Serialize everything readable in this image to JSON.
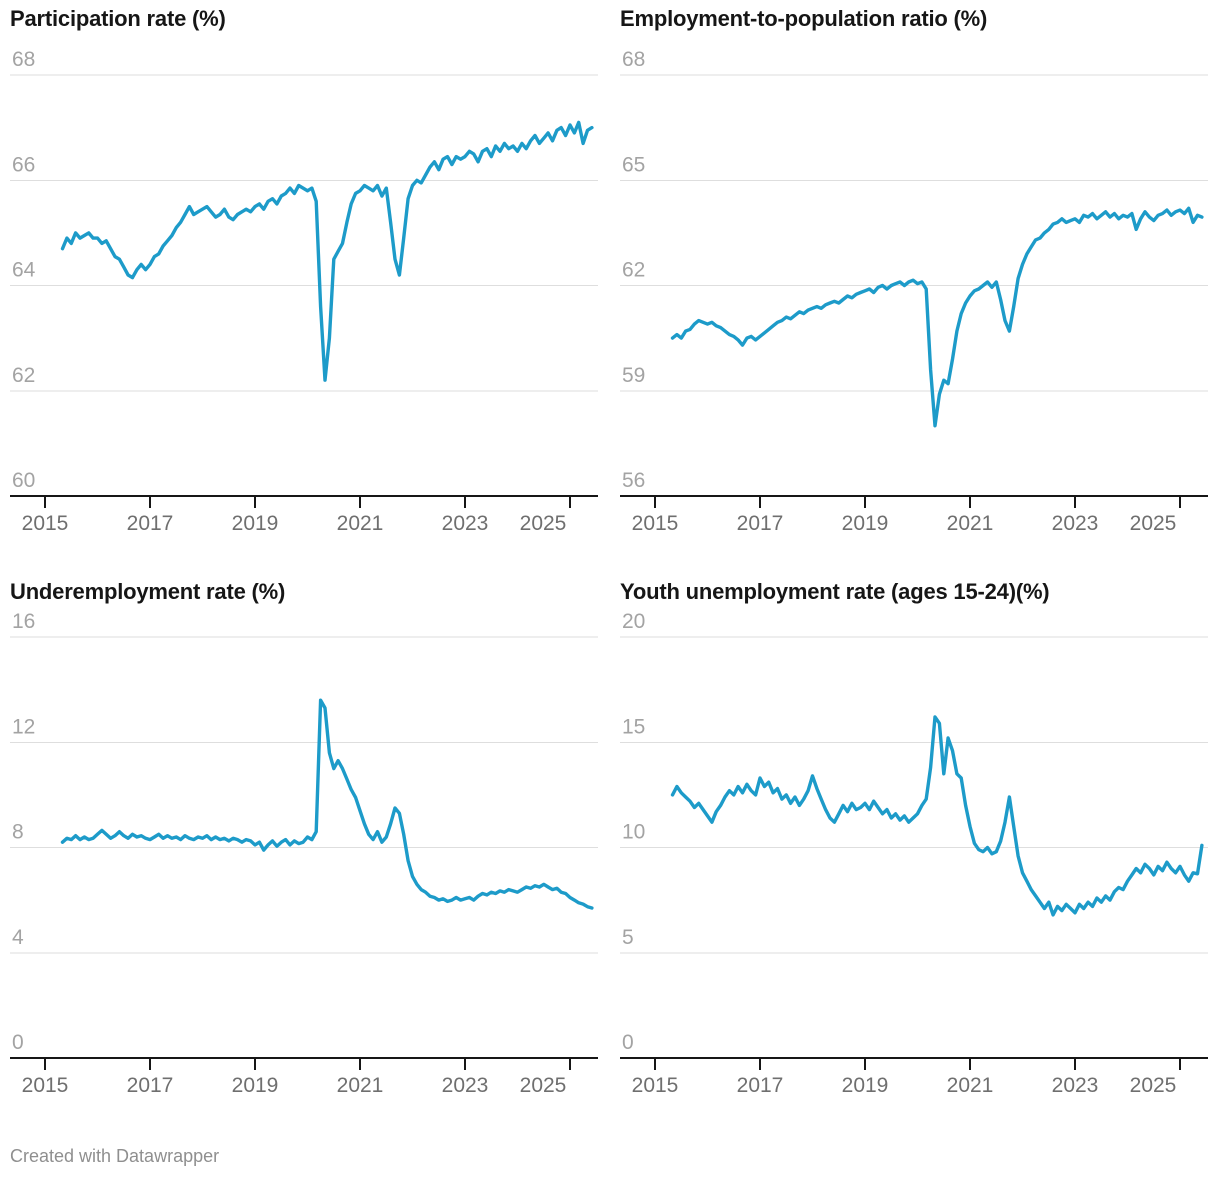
{
  "footer": {
    "credit": "Created with Datawrapper"
  },
  "colors": {
    "line": "#1d9bc9",
    "grid": "#dedede",
    "axis": "#161616",
    "y_label": "#a3a3a3",
    "x_label": "#6f6f6f",
    "title": "#161616",
    "credit": "#8f8f8f"
  },
  "chart_data": [
    {
      "type": "line",
      "title": "Participation rate (%)",
      "position": "top-left",
      "x": {
        "start": "2015-05",
        "frequency": "monthly",
        "tick_years": [
          2015,
          2017,
          2019,
          2021,
          2023,
          2025
        ]
      },
      "ylim": [
        60,
        68
      ],
      "y_ticks": [
        68,
        66,
        64,
        62,
        60
      ],
      "grid": true,
      "legend": "none",
      "values": [
        64.7,
        64.9,
        64.8,
        65.0,
        64.9,
        64.95,
        65.0,
        64.9,
        64.9,
        64.8,
        64.85,
        64.7,
        64.55,
        64.5,
        64.35,
        64.2,
        64.15,
        64.3,
        64.4,
        64.3,
        64.4,
        64.55,
        64.6,
        64.75,
        64.85,
        64.95,
        65.1,
        65.2,
        65.35,
        65.5,
        65.35,
        65.4,
        65.45,
        65.5,
        65.4,
        65.3,
        65.35,
        65.45,
        65.3,
        65.25,
        65.35,
        65.4,
        65.45,
        65.4,
        65.5,
        65.55,
        65.45,
        65.6,
        65.65,
        65.55,
        65.7,
        65.75,
        65.85,
        65.75,
        65.9,
        65.85,
        65.8,
        65.85,
        65.6,
        63.6,
        62.2,
        63.0,
        64.5,
        64.65,
        64.8,
        65.2,
        65.55,
        65.75,
        65.8,
        65.9,
        65.85,
        65.8,
        65.9,
        65.7,
        65.85,
        65.2,
        64.5,
        64.2,
        64.9,
        65.65,
        65.9,
        66.0,
        65.95,
        66.1,
        66.25,
        66.35,
        66.2,
        66.4,
        66.45,
        66.3,
        66.45,
        66.4,
        66.45,
        66.55,
        66.5,
        66.35,
        66.55,
        66.6,
        66.45,
        66.65,
        66.55,
        66.7,
        66.6,
        66.65,
        66.55,
        66.7,
        66.6,
        66.75,
        66.85,
        66.7,
        66.8,
        66.9,
        66.75,
        66.95,
        67.0,
        66.85,
        67.05,
        66.9,
        67.1,
        66.7,
        66.95,
        67.0
      ]
    },
    {
      "type": "line",
      "title": "Employment-to-population ratio (%)",
      "position": "top-right",
      "x": {
        "start": "2015-05",
        "frequency": "monthly",
        "tick_years": [
          2015,
          2017,
          2019,
          2021,
          2023,
          2025
        ]
      },
      "ylim": [
        56,
        68
      ],
      "y_ticks": [
        68,
        65,
        62,
        59,
        56
      ],
      "grid": true,
      "legend": "none",
      "values": [
        60.5,
        60.6,
        60.5,
        60.7,
        60.75,
        60.9,
        61.0,
        60.95,
        60.9,
        60.95,
        60.85,
        60.8,
        60.7,
        60.6,
        60.55,
        60.45,
        60.3,
        60.5,
        60.55,
        60.45,
        60.55,
        60.65,
        60.75,
        60.85,
        60.95,
        61.0,
        61.1,
        61.05,
        61.15,
        61.25,
        61.2,
        61.3,
        61.35,
        61.4,
        61.35,
        61.45,
        61.5,
        61.55,
        61.5,
        61.6,
        61.7,
        61.65,
        61.75,
        61.8,
        61.85,
        61.9,
        61.8,
        61.95,
        62.0,
        61.9,
        62.0,
        62.05,
        62.1,
        62.0,
        62.1,
        62.15,
        62.05,
        62.1,
        61.9,
        59.6,
        58.0,
        58.9,
        59.3,
        59.2,
        59.9,
        60.7,
        61.2,
        61.5,
        61.7,
        61.85,
        61.9,
        62.0,
        62.1,
        61.95,
        62.1,
        61.6,
        61.0,
        60.7,
        61.4,
        62.2,
        62.6,
        62.9,
        63.1,
        63.3,
        63.35,
        63.5,
        63.6,
        63.75,
        63.8,
        63.9,
        63.8,
        63.85,
        63.9,
        63.8,
        64.0,
        63.95,
        64.05,
        63.9,
        64.0,
        64.1,
        63.95,
        64.05,
        63.9,
        64.0,
        63.95,
        64.05,
        63.6,
        63.9,
        64.1,
        63.95,
        63.85,
        64.0,
        64.05,
        64.15,
        64.0,
        64.1,
        64.15,
        64.05,
        64.2,
        63.8,
        64.0,
        63.95
      ]
    },
    {
      "type": "line",
      "title": "Underemployment rate (%)",
      "position": "bottom-left",
      "x": {
        "start": "2015-05",
        "frequency": "monthly",
        "tick_years": [
          2015,
          2017,
          2019,
          2021,
          2023,
          2025
        ]
      },
      "ylim": [
        0,
        16
      ],
      "y_ticks": [
        16,
        12,
        8,
        4,
        0
      ],
      "grid": true,
      "legend": "none",
      "values": [
        8.2,
        8.35,
        8.3,
        8.45,
        8.3,
        8.4,
        8.3,
        8.35,
        8.5,
        8.65,
        8.5,
        8.35,
        8.45,
        8.6,
        8.45,
        8.35,
        8.5,
        8.4,
        8.45,
        8.35,
        8.3,
        8.4,
        8.5,
        8.35,
        8.45,
        8.35,
        8.4,
        8.3,
        8.45,
        8.35,
        8.3,
        8.4,
        8.35,
        8.45,
        8.3,
        8.4,
        8.3,
        8.35,
        8.25,
        8.35,
        8.3,
        8.2,
        8.3,
        8.25,
        8.1,
        8.2,
        7.9,
        8.1,
        8.25,
        8.05,
        8.2,
        8.3,
        8.1,
        8.25,
        8.15,
        8.2,
        8.4,
        8.3,
        8.6,
        13.6,
        13.3,
        11.6,
        11.0,
        11.3,
        11.0,
        10.6,
        10.2,
        9.9,
        9.4,
        8.9,
        8.5,
        8.3,
        8.6,
        8.2,
        8.4,
        8.9,
        9.5,
        9.3,
        8.5,
        7.5,
        6.9,
        6.6,
        6.4,
        6.3,
        6.15,
        6.1,
        6.0,
        6.05,
        5.95,
        6.0,
        6.1,
        6.0,
        6.05,
        6.1,
        6.0,
        6.15,
        6.25,
        6.2,
        6.3,
        6.25,
        6.35,
        6.3,
        6.4,
        6.35,
        6.3,
        6.4,
        6.5,
        6.45,
        6.55,
        6.5,
        6.6,
        6.5,
        6.4,
        6.45,
        6.3,
        6.25,
        6.1,
        6.0,
        5.9,
        5.85,
        5.75,
        5.7
      ]
    },
    {
      "type": "line",
      "title": "Youth unemployment rate (ages 15-24)(%)",
      "position": "bottom-right",
      "x": {
        "start": "2015-05",
        "frequency": "monthly",
        "tick_years": [
          2015,
          2017,
          2019,
          2021,
          2023,
          2025
        ]
      },
      "ylim": [
        0,
        20
      ],
      "y_ticks": [
        20,
        15,
        10,
        5,
        0
      ],
      "grid": true,
      "legend": "none",
      "values": [
        12.5,
        12.9,
        12.6,
        12.4,
        12.2,
        11.9,
        12.1,
        11.8,
        11.5,
        11.2,
        11.7,
        12.0,
        12.4,
        12.7,
        12.5,
        12.9,
        12.6,
        13.0,
        12.7,
        12.5,
        13.3,
        12.9,
        13.1,
        12.6,
        12.8,
        12.3,
        12.5,
        12.1,
        12.4,
        12.0,
        12.3,
        12.7,
        13.4,
        12.8,
        12.3,
        11.8,
        11.4,
        11.2,
        11.6,
        12.0,
        11.7,
        12.1,
        11.8,
        11.9,
        12.1,
        11.8,
        12.2,
        11.9,
        11.6,
        11.8,
        11.4,
        11.6,
        11.3,
        11.5,
        11.2,
        11.4,
        11.6,
        12.0,
        12.3,
        13.8,
        16.2,
        15.9,
        13.5,
        15.2,
        14.6,
        13.5,
        13.3,
        12.0,
        11.0,
        10.2,
        9.9,
        9.8,
        10.0,
        9.7,
        9.8,
        10.3,
        11.2,
        12.4,
        11.0,
        9.6,
        8.8,
        8.4,
        8.0,
        7.7,
        7.4,
        7.1,
        7.4,
        6.8,
        7.2,
        7.0,
        7.3,
        7.1,
        6.9,
        7.3,
        7.1,
        7.4,
        7.2,
        7.6,
        7.4,
        7.7,
        7.5,
        7.9,
        8.1,
        8.0,
        8.4,
        8.7,
        9.0,
        8.8,
        9.2,
        9.0,
        8.7,
        9.1,
        8.9,
        9.3,
        9.0,
        8.8,
        9.1,
        8.7,
        8.4,
        8.8,
        8.75,
        10.1
      ]
    }
  ]
}
